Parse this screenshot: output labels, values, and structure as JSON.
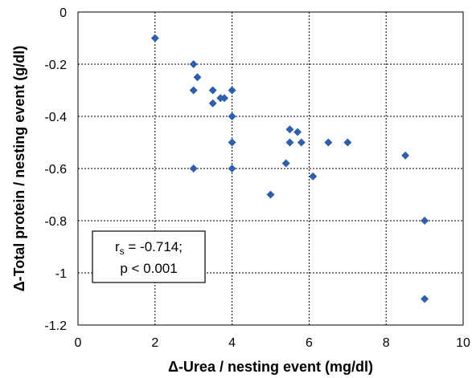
{
  "chart_data": {
    "type": "scatter",
    "xlabel": "Δ-Urea / nesting event  (mg/dl)",
    "ylabel": "Δ-Total protein / nesting event (g/dl)",
    "xlim": [
      0,
      10
    ],
    "ylim": [
      -1.2,
      0
    ],
    "x_ticks": [
      0,
      2,
      4,
      6,
      8,
      10
    ],
    "y_ticks": [
      0,
      -0.2,
      -0.4,
      -0.6,
      -0.8,
      -1,
      -1.2
    ],
    "grid": true,
    "marker": "diamond",
    "marker_color": "#2E5FA8",
    "points": [
      {
        "x": 2,
        "y": -0.1
      },
      {
        "x": 3,
        "y": -0.2
      },
      {
        "x": 3,
        "y": -0.3
      },
      {
        "x": 3.1,
        "y": -0.25
      },
      {
        "x": 3.5,
        "y": -0.3
      },
      {
        "x": 3.5,
        "y": -0.35
      },
      {
        "x": 3.7,
        "y": -0.33
      },
      {
        "x": 3.8,
        "y": -0.33
      },
      {
        "x": 4,
        "y": -0.3
      },
      {
        "x": 4,
        "y": -0.4
      },
      {
        "x": 4,
        "y": -0.5
      },
      {
        "x": 4,
        "y": -0.6
      },
      {
        "x": 3,
        "y": -0.6
      },
      {
        "x": 5,
        "y": -0.7
      },
      {
        "x": 5.4,
        "y": -0.58
      },
      {
        "x": 5.5,
        "y": -0.45
      },
      {
        "x": 5.5,
        "y": -0.5
      },
      {
        "x": 5.7,
        "y": -0.46
      },
      {
        "x": 5.8,
        "y": -0.5
      },
      {
        "x": 6.1,
        "y": -0.63
      },
      {
        "x": 6.5,
        "y": -0.5
      },
      {
        "x": 7,
        "y": -0.5
      },
      {
        "x": 8.5,
        "y": -0.55
      },
      {
        "x": 9,
        "y": -0.8
      },
      {
        "x": 9,
        "y": -1.1
      }
    ],
    "annotation": {
      "line1_main": "r",
      "line1_sub": "s",
      "line1_rest": " = -0.714;",
      "line2": "p < 0.001"
    }
  }
}
